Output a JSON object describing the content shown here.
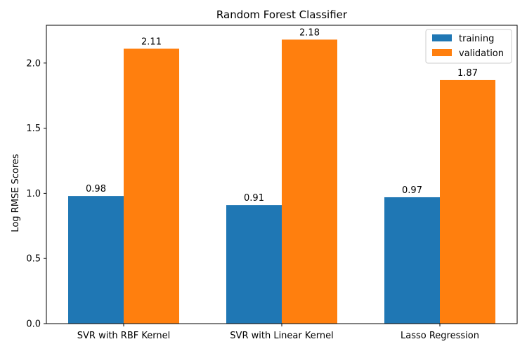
{
  "chart_data": {
    "type": "bar",
    "title": "Random Forest Classifier",
    "xlabel": "",
    "ylabel": "Log RMSE Scores",
    "categories": [
      "SVR with RBF Kernel",
      "SVR with Linear Kernel",
      "Lasso Regression"
    ],
    "series": [
      {
        "name": "training",
        "values": [
          0.98,
          0.91,
          0.97
        ],
        "labels": [
          "0.98",
          "0.91",
          "0.97"
        ],
        "color": "#1f77b4"
      },
      {
        "name": "validation",
        "values": [
          2.11,
          2.18,
          1.87
        ],
        "labels": [
          "2.11",
          "2.18",
          "1.87"
        ],
        "color": "#ff7f0e"
      }
    ],
    "ylim": [
      0,
      2.29
    ],
    "yticks": [
      0.0,
      0.5,
      1.0,
      1.5,
      2.0
    ],
    "ytick_labels": [
      "0.0",
      "0.5",
      "1.0",
      "1.5",
      "2.0"
    ],
    "grid": false,
    "legend_position": "top-right"
  }
}
